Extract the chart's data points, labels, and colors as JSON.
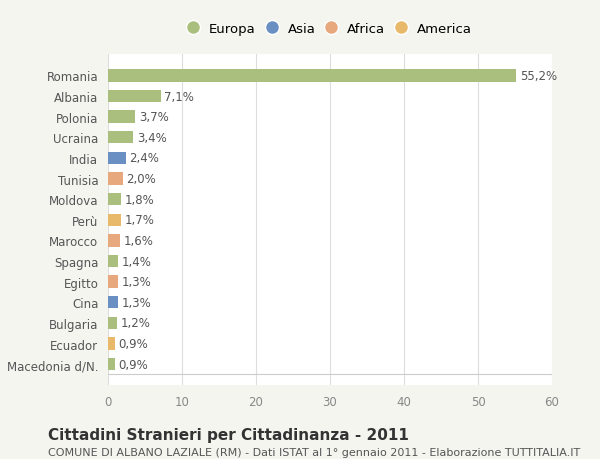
{
  "categories": [
    "Macedonia d/N.",
    "Ecuador",
    "Bulgaria",
    "Cina",
    "Egitto",
    "Spagna",
    "Marocco",
    "Perù",
    "Moldova",
    "Tunisia",
    "India",
    "Ucraina",
    "Polonia",
    "Albania",
    "Romania"
  ],
  "values": [
    0.9,
    0.9,
    1.2,
    1.3,
    1.3,
    1.4,
    1.6,
    1.7,
    1.8,
    2.0,
    2.4,
    3.4,
    3.7,
    7.1,
    55.2
  ],
  "labels": [
    "0,9%",
    "0,9%",
    "1,2%",
    "1,3%",
    "1,3%",
    "1,4%",
    "1,6%",
    "1,7%",
    "1,8%",
    "2,0%",
    "2,4%",
    "3,4%",
    "3,7%",
    "7,1%",
    "55,2%"
  ],
  "bar_colors": [
    "#aabf7e",
    "#e8b96a",
    "#aabf7e",
    "#6a8fc2",
    "#e8a87e",
    "#aabf7e",
    "#e8a87e",
    "#e8b96a",
    "#aabf7e",
    "#e8a87e",
    "#6a8fc2",
    "#aabf7e",
    "#aabf7e",
    "#aabf7e",
    "#aabf7e"
  ],
  "legend_labels": [
    "Europa",
    "Asia",
    "Africa",
    "America"
  ],
  "legend_colors": [
    "#aabf7e",
    "#6a8fc2",
    "#e8a87e",
    "#e8b96a"
  ],
  "title": "Cittadini Stranieri per Cittadinanza - 2011",
  "subtitle": "COMUNE DI ALBANO LAZIALE (RM) - Dati ISTAT al 1° gennaio 2011 - Elaborazione TUTTITALIA.IT",
  "xlim": [
    0,
    60
  ],
  "xticks": [
    0,
    10,
    20,
    30,
    40,
    50,
    60
  ],
  "background_color": "#f5f5f0",
  "bar_background": "#ffffff",
  "grid_color": "#dddddd",
  "title_fontsize": 11,
  "subtitle_fontsize": 8,
  "label_fontsize": 8.5,
  "tick_fontsize": 8.5
}
